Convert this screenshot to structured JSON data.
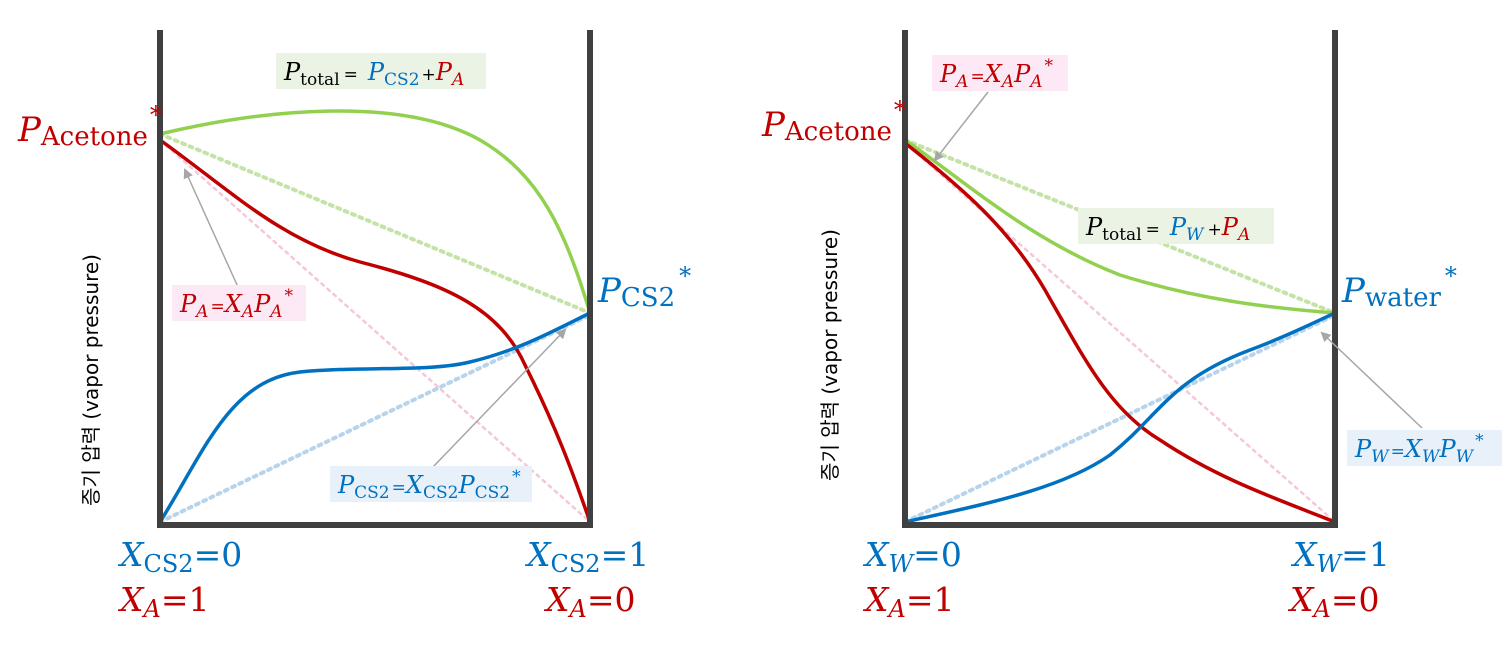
{
  "colors": {
    "acetone": "#c00000",
    "cs2": "#0070c0",
    "water": "#0070c0",
    "total": "#92d050",
    "frame": "#404040",
    "arrow": "#a6a6a6",
    "label_bg_pink": "#fde9f6",
    "label_bg_green": "#eaf3e4",
    "label_bg_blue": "#e8f1f9"
  },
  "y_axis_label": "증기 압력 (vapor pressure)",
  "left_diagram": {
    "x_axis": {
      "left_top": {
        "sym": "X",
        "sub": "CS2",
        "rel": "=0"
      },
      "left_bottom": {
        "sym": "X",
        "sub": "A",
        "rel": "=1"
      },
      "right_top": {
        "sym": "X",
        "sub": "CS2",
        "rel": "=1"
      },
      "right_bottom": {
        "sym": "X",
        "sub": "A",
        "rel": "=0"
      }
    },
    "pure_left": {
      "sym": "P",
      "sub": "Acetone",
      "sup": "*"
    },
    "pure_right": {
      "sym": "P",
      "sub": "CS2",
      "sup": "*"
    },
    "eq_total": {
      "p": "P",
      "sub": "total",
      "eq": "=",
      "p1": "P",
      "sub1": "CS2",
      "plus": "+",
      "p2": "P",
      "sub2": "A"
    },
    "eq_a": {
      "p": "P",
      "sub": "A",
      "eq": "=",
      "x": "X",
      "xsub": "A",
      "p2": "P",
      "p2sub": "A",
      "sup": "*"
    },
    "eq_b": {
      "p": "P",
      "sub": "CS2",
      "eq": "=",
      "x": "X",
      "xsub": "CS2",
      "p2": "P",
      "p2sub": "CS2",
      "sup": "*"
    }
  },
  "right_diagram": {
    "x_axis": {
      "left_top": {
        "sym": "X",
        "sub": "W",
        "rel": "=0"
      },
      "left_bottom": {
        "sym": "X",
        "sub": "A",
        "rel": "=1"
      },
      "right_top": {
        "sym": "X",
        "sub": "W",
        "rel": "=1"
      },
      "right_bottom": {
        "sym": "X",
        "sub": "A",
        "rel": "=0"
      }
    },
    "pure_left": {
      "sym": "P",
      "sub": "Acetone",
      "sup": "*"
    },
    "pure_right": {
      "sym": "P",
      "sub": "water",
      "sup": "*"
    },
    "eq_total": {
      "p": "P",
      "sub": "total",
      "eq": "=",
      "p1": "P",
      "sub1": "W",
      "plus": "+",
      "p2": "P",
      "sub2": "A"
    },
    "eq_a": {
      "p": "P",
      "sub": "A",
      "eq": "=",
      "x": "X",
      "xsub": "A",
      "p2": "P",
      "p2sub": "A",
      "sup": "*"
    },
    "eq_b": {
      "p": "P",
      "sub": "W",
      "eq": "=",
      "x": "X",
      "xsub": "W",
      "p2": "P",
      "p2sub": "W",
      "sup": "*"
    }
  }
}
